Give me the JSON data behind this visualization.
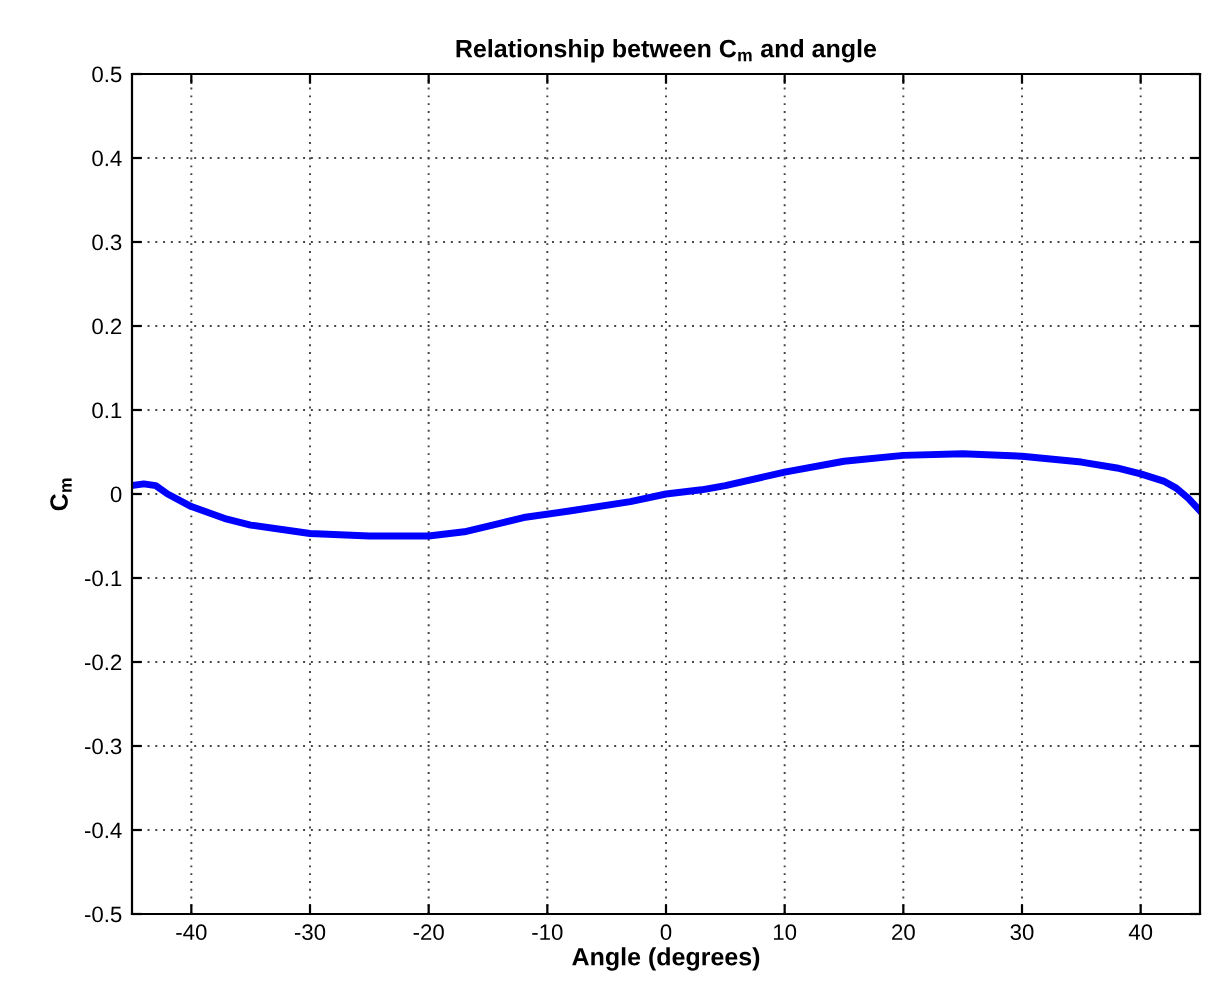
{
  "chart_data": {
    "type": "line",
    "title": "Relationship between C$_{m}$ and angle",
    "xlabel": "Angle (degrees)",
    "ylabel": "C$_{m}$",
    "series": [
      {
        "color": "#0000ff",
        "x": [
          -45,
          -44,
          -43,
          -42,
          -40,
          -37,
          -35,
          -30,
          -25,
          -20,
          -17,
          -14,
          -12,
          -8,
          -3,
          0,
          3,
          5,
          10,
          15,
          20,
          25,
          30,
          35,
          38,
          40,
          42,
          43,
          44,
          45
        ],
        "values": [
          0.01,
          0.012,
          0.01,
          0.0,
          -0.015,
          -0.03,
          -0.037,
          -0.047,
          -0.05,
          -0.05,
          -0.045,
          -0.035,
          -0.028,
          -0.02,
          -0.009,
          0.0,
          0.005,
          0.01,
          0.026,
          0.039,
          0.046,
          0.048,
          0.045,
          0.038,
          0.031,
          0.024,
          0.015,
          0.007,
          -0.005,
          -0.02
        ]
      }
    ],
    "xlim": [
      -45,
      45
    ],
    "xticks": [
      -40,
      -30,
      -20,
      -10,
      0,
      10,
      20,
      30,
      40
    ],
    "ylim": [
      -0.5,
      0.5
    ],
    "yticks": [
      -0.5,
      -0.4,
      -0.3,
      -0.2,
      -0.1,
      0,
      0.1,
      0.2,
      0.3,
      0.4,
      0.5
    ],
    "grid": true,
    "line_style": "solid",
    "marker": "none"
  }
}
